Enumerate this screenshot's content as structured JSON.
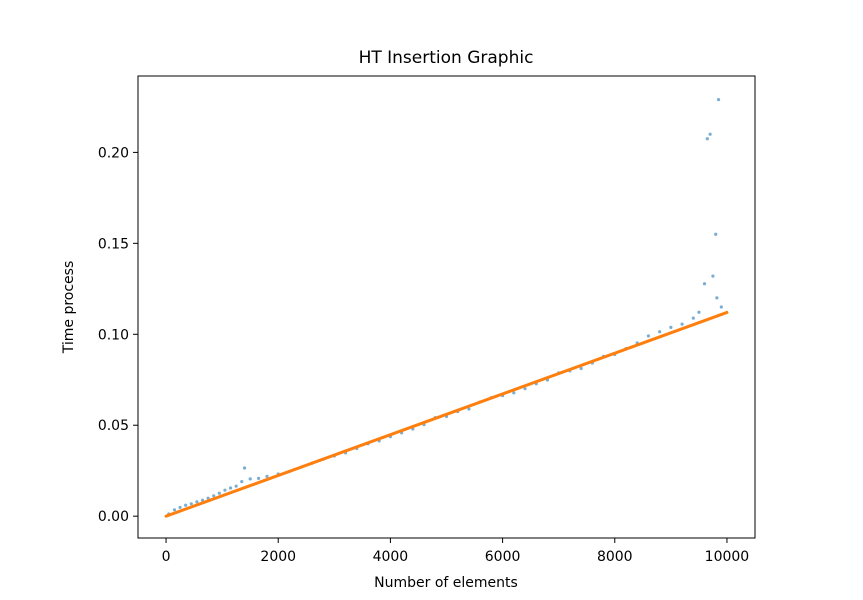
{
  "chart_data": {
    "type": "scatter",
    "title": "HT Insertion Graphic",
    "xlabel": "Number of elements",
    "ylabel": "Time process",
    "xlim": [
      -500,
      10500
    ],
    "ylim": [
      -0.012,
      0.242
    ],
    "xticks": [
      0,
      2000,
      4000,
      6000,
      8000,
      10000
    ],
    "xtick_labels": [
      "0",
      "2000",
      "4000",
      "6000",
      "8000",
      "10000"
    ],
    "yticks": [
      0.0,
      0.05,
      0.1,
      0.15,
      0.2
    ],
    "ytick_labels": [
      "0.00",
      "0.05",
      "0.10",
      "0.15",
      "0.20"
    ],
    "grid": false,
    "colors": {
      "scatter": "#1f77b4",
      "fit": "#ff7f0e"
    },
    "series": [
      {
        "kind": "scatter",
        "points": [
          [
            50,
            0.0012
          ],
          [
            150,
            0.0035
          ],
          [
            250,
            0.0048
          ],
          [
            350,
            0.006
          ],
          [
            450,
            0.0068
          ],
          [
            550,
            0.0079
          ],
          [
            650,
            0.0088
          ],
          [
            750,
            0.0099
          ],
          [
            850,
            0.0112
          ],
          [
            950,
            0.0126
          ],
          [
            1050,
            0.0143
          ],
          [
            1150,
            0.0155
          ],
          [
            1250,
            0.0165
          ],
          [
            1350,
            0.019
          ],
          [
            1400,
            0.0265
          ],
          [
            1500,
            0.0205
          ],
          [
            1650,
            0.0208
          ],
          [
            1800,
            0.0219
          ],
          [
            2000,
            0.0232
          ],
          [
            2200,
            0.0246
          ],
          [
            2400,
            0.0268
          ],
          [
            2600,
            0.0291
          ],
          [
            2800,
            0.0313
          ],
          [
            3000,
            0.0331
          ],
          [
            3200,
            0.0348
          ],
          [
            3400,
            0.0372
          ],
          [
            3600,
            0.0398
          ],
          [
            3800,
            0.0414
          ],
          [
            4000,
            0.0437
          ],
          [
            4200,
            0.0458
          ],
          [
            4400,
            0.0479
          ],
          [
            4600,
            0.0503
          ],
          [
            4800,
            0.0542
          ],
          [
            5000,
            0.0548
          ],
          [
            5200,
            0.0575
          ],
          [
            5400,
            0.0589
          ],
          [
            5600,
            0.0628
          ],
          [
            5800,
            0.0652
          ],
          [
            6000,
            0.0663
          ],
          [
            6200,
            0.0678
          ],
          [
            6400,
            0.0701
          ],
          [
            6600,
            0.0728
          ],
          [
            6800,
            0.0749
          ],
          [
            7000,
            0.0788
          ],
          [
            7200,
            0.0799
          ],
          [
            7400,
            0.0812
          ],
          [
            7600,
            0.0842
          ],
          [
            7800,
            0.0879
          ],
          [
            8000,
            0.0889
          ],
          [
            8200,
            0.0921
          ],
          [
            8400,
            0.0952
          ],
          [
            8600,
            0.0991
          ],
          [
            8800,
            0.1014
          ],
          [
            9000,
            0.1038
          ],
          [
            9200,
            0.1056
          ],
          [
            9400,
            0.1089
          ],
          [
            9500,
            0.1121
          ],
          [
            9600,
            0.1278
          ],
          [
            9650,
            0.2075
          ],
          [
            9700,
            0.21
          ],
          [
            9750,
            0.132
          ],
          [
            9800,
            0.155
          ],
          [
            9820,
            0.12
          ],
          [
            9850,
            0.229
          ],
          [
            9900,
            0.115
          ]
        ]
      },
      {
        "kind": "line",
        "x": [
          0,
          10000
        ],
        "y": [
          0.0,
          0.112
        ]
      }
    ]
  }
}
